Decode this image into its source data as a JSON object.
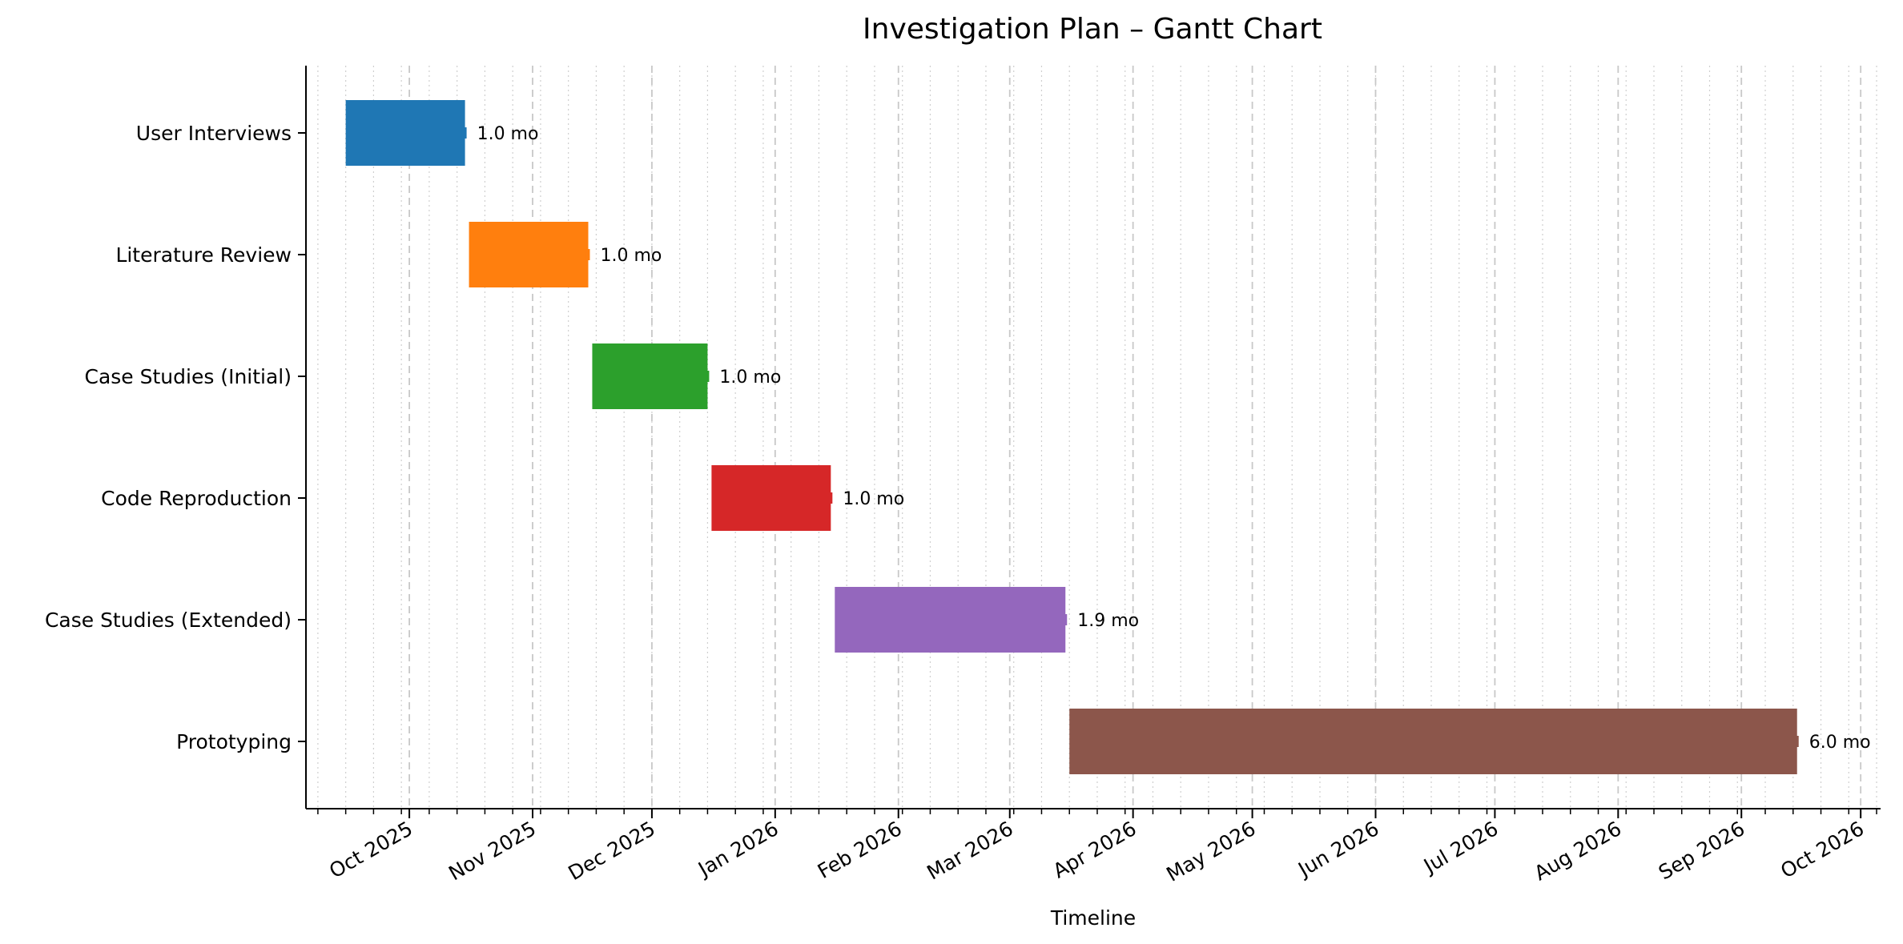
{
  "chart_data": {
    "type": "gantt",
    "title": "Investigation Plan – Gantt Chart",
    "xlabel": "Timeline",
    "ylabel": "",
    "xlim": [
      "2025-09-05",
      "2026-10-06"
    ],
    "x_ticks": [
      {
        "date": "2025-10-01",
        "label": "Oct 2025"
      },
      {
        "date": "2025-11-01",
        "label": "Nov 2025"
      },
      {
        "date": "2025-12-01",
        "label": "Dec 2025"
      },
      {
        "date": "2026-01-01",
        "label": "Jan 2026"
      },
      {
        "date": "2026-02-01",
        "label": "Feb 2026"
      },
      {
        "date": "2026-03-01",
        "label": "Mar 2026"
      },
      {
        "date": "2026-04-01",
        "label": "Apr 2026"
      },
      {
        "date": "2026-05-01",
        "label": "May 2026"
      },
      {
        "date": "2026-06-01",
        "label": "Jun 2026"
      },
      {
        "date": "2026-07-01",
        "label": "Jul 2026"
      },
      {
        "date": "2026-08-01",
        "label": "Aug 2026"
      },
      {
        "date": "2026-09-01",
        "label": "Sep 2026"
      },
      {
        "date": "2026-10-01",
        "label": "Oct 2026"
      }
    ],
    "grid": {
      "major_x": true,
      "minor_x": true
    },
    "tasks": [
      {
        "name": "User Interviews",
        "start": "2025-09-15",
        "end": "2025-10-15",
        "duration_label": "1.0 mo",
        "color": "#1f77b4"
      },
      {
        "name": "Literature Review",
        "start": "2025-10-16",
        "end": "2025-11-15",
        "duration_label": "1.0 mo",
        "color": "#ff7f0e"
      },
      {
        "name": "Case Studies (Initial)",
        "start": "2025-11-16",
        "end": "2025-12-15",
        "duration_label": "1.0 mo",
        "color": "#2ca02c"
      },
      {
        "name": "Code Reproduction",
        "start": "2025-12-16",
        "end": "2026-01-15",
        "duration_label": "1.0 mo",
        "color": "#d62728"
      },
      {
        "name": "Case Studies (Extended)",
        "start": "2026-01-16",
        "end": "2026-03-15",
        "duration_label": "1.9 mo",
        "color": "#9467bd"
      },
      {
        "name": "Prototyping",
        "start": "2026-03-16",
        "end": "2026-09-15",
        "duration_label": "6.0 mo",
        "color": "#8c564b"
      }
    ]
  }
}
